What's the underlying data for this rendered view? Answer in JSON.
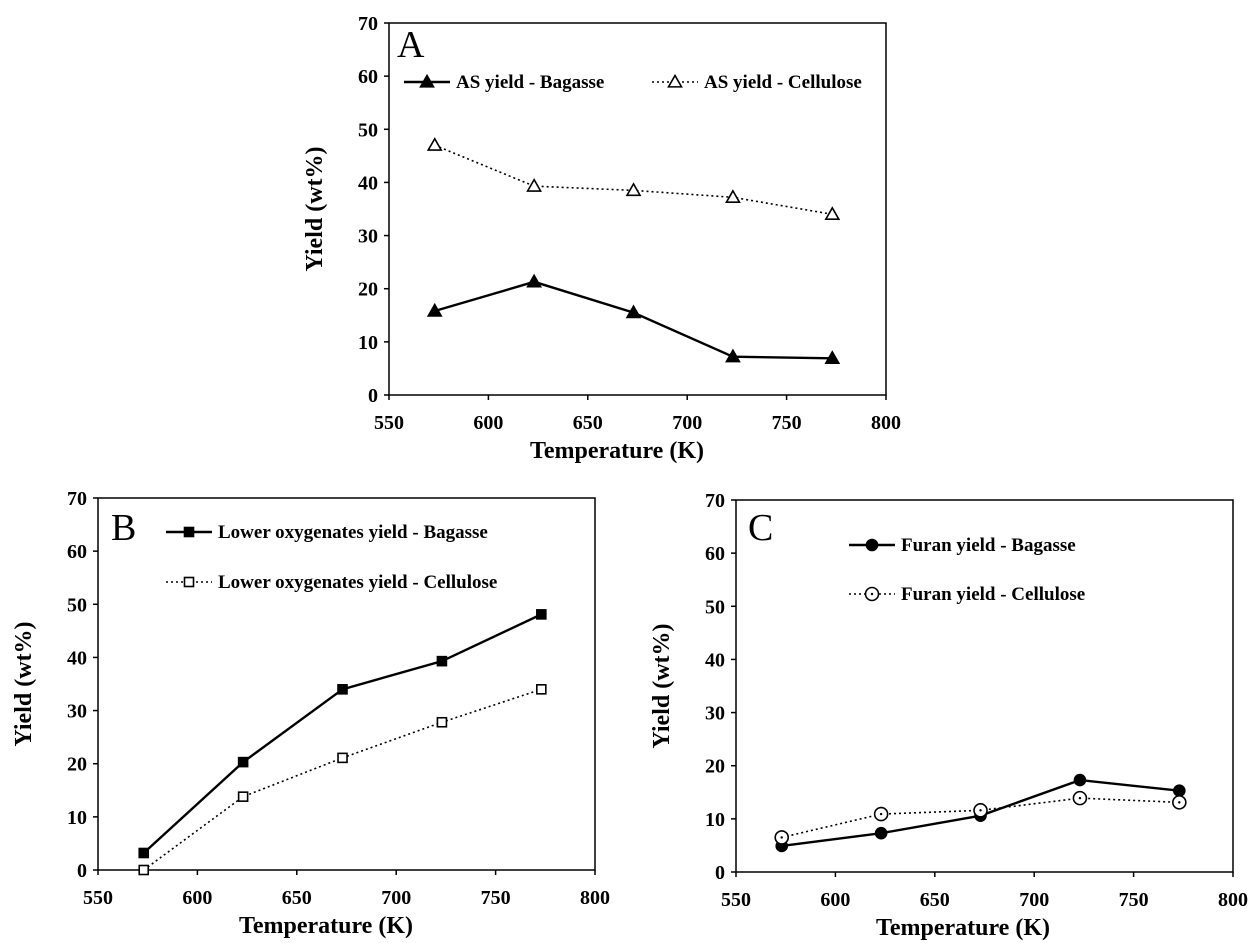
{
  "chart_data": [
    {
      "type": "line",
      "panel_label": "A",
      "xlabel": "Temperature (K)",
      "ylabel": "Yield (wt%)",
      "xlim": [
        550,
        800
      ],
      "ylim": [
        0,
        70
      ],
      "xticks": [
        550,
        600,
        650,
        700,
        750,
        800
      ],
      "yticks": [
        0,
        10,
        20,
        30,
        40,
        50,
        60,
        70
      ],
      "legend_layout": "row",
      "legend_placement": "top",
      "series": [
        {
          "name": "AS yield - Bagasse",
          "marker": "triangle-filled",
          "line": "solid",
          "x": [
            573,
            623,
            673,
            723,
            773
          ],
          "values": [
            15.8,
            21.3,
            15.5,
            7.2,
            6.9
          ]
        },
        {
          "name": "AS yield - Cellulose",
          "marker": "triangle-open",
          "line": "dotted",
          "x": [
            573,
            623,
            673,
            723,
            773
          ],
          "values": [
            47.0,
            39.3,
            38.5,
            37.2,
            34.0
          ]
        }
      ]
    },
    {
      "type": "line",
      "panel_label": "B",
      "xlabel": "Temperature (K)",
      "ylabel": "Yield (wt%)",
      "xlim": [
        550,
        800
      ],
      "ylim": [
        0,
        70
      ],
      "xticks": [
        550,
        600,
        650,
        700,
        750,
        800
      ],
      "yticks": [
        0,
        10,
        20,
        30,
        40,
        50,
        60,
        70
      ],
      "legend_layout": "column",
      "legend_placement": "top-left",
      "series": [
        {
          "name": "Lower oxygenates yield - Bagasse",
          "marker": "square-filled",
          "line": "solid",
          "x": [
            573,
            623,
            673,
            723,
            773
          ],
          "values": [
            3.2,
            20.3,
            34.0,
            39.3,
            48.1
          ]
        },
        {
          "name": "Lower oxygenates yield - Cellulose",
          "marker": "square-open",
          "line": "dotted",
          "x": [
            573,
            623,
            673,
            723,
            773
          ],
          "values": [
            0.0,
            13.8,
            21.1,
            27.8,
            34.0
          ]
        }
      ]
    },
    {
      "type": "line",
      "panel_label": "C",
      "xlabel": "Temperature (K)",
      "ylabel": "Yield (wt%)",
      "xlim": [
        550,
        800
      ],
      "ylim": [
        0,
        70
      ],
      "xticks": [
        550,
        600,
        650,
        700,
        750,
        800
      ],
      "yticks": [
        0,
        10,
        20,
        30,
        40,
        50,
        60,
        70
      ],
      "legend_layout": "column",
      "legend_placement": "top-left",
      "series": [
        {
          "name": "Furan yield  - Bagasse",
          "marker": "circle-filled",
          "line": "solid",
          "x": [
            573,
            623,
            673,
            723,
            773
          ],
          "values": [
            4.9,
            7.3,
            10.6,
            17.3,
            15.3
          ]
        },
        {
          "name": "Furan yield - Cellulose",
          "marker": "circle-open",
          "line": "dotted",
          "x": [
            573,
            623,
            673,
            723,
            773
          ],
          "values": [
            6.5,
            10.9,
            11.6,
            13.9,
            13.1
          ]
        }
      ]
    }
  ]
}
